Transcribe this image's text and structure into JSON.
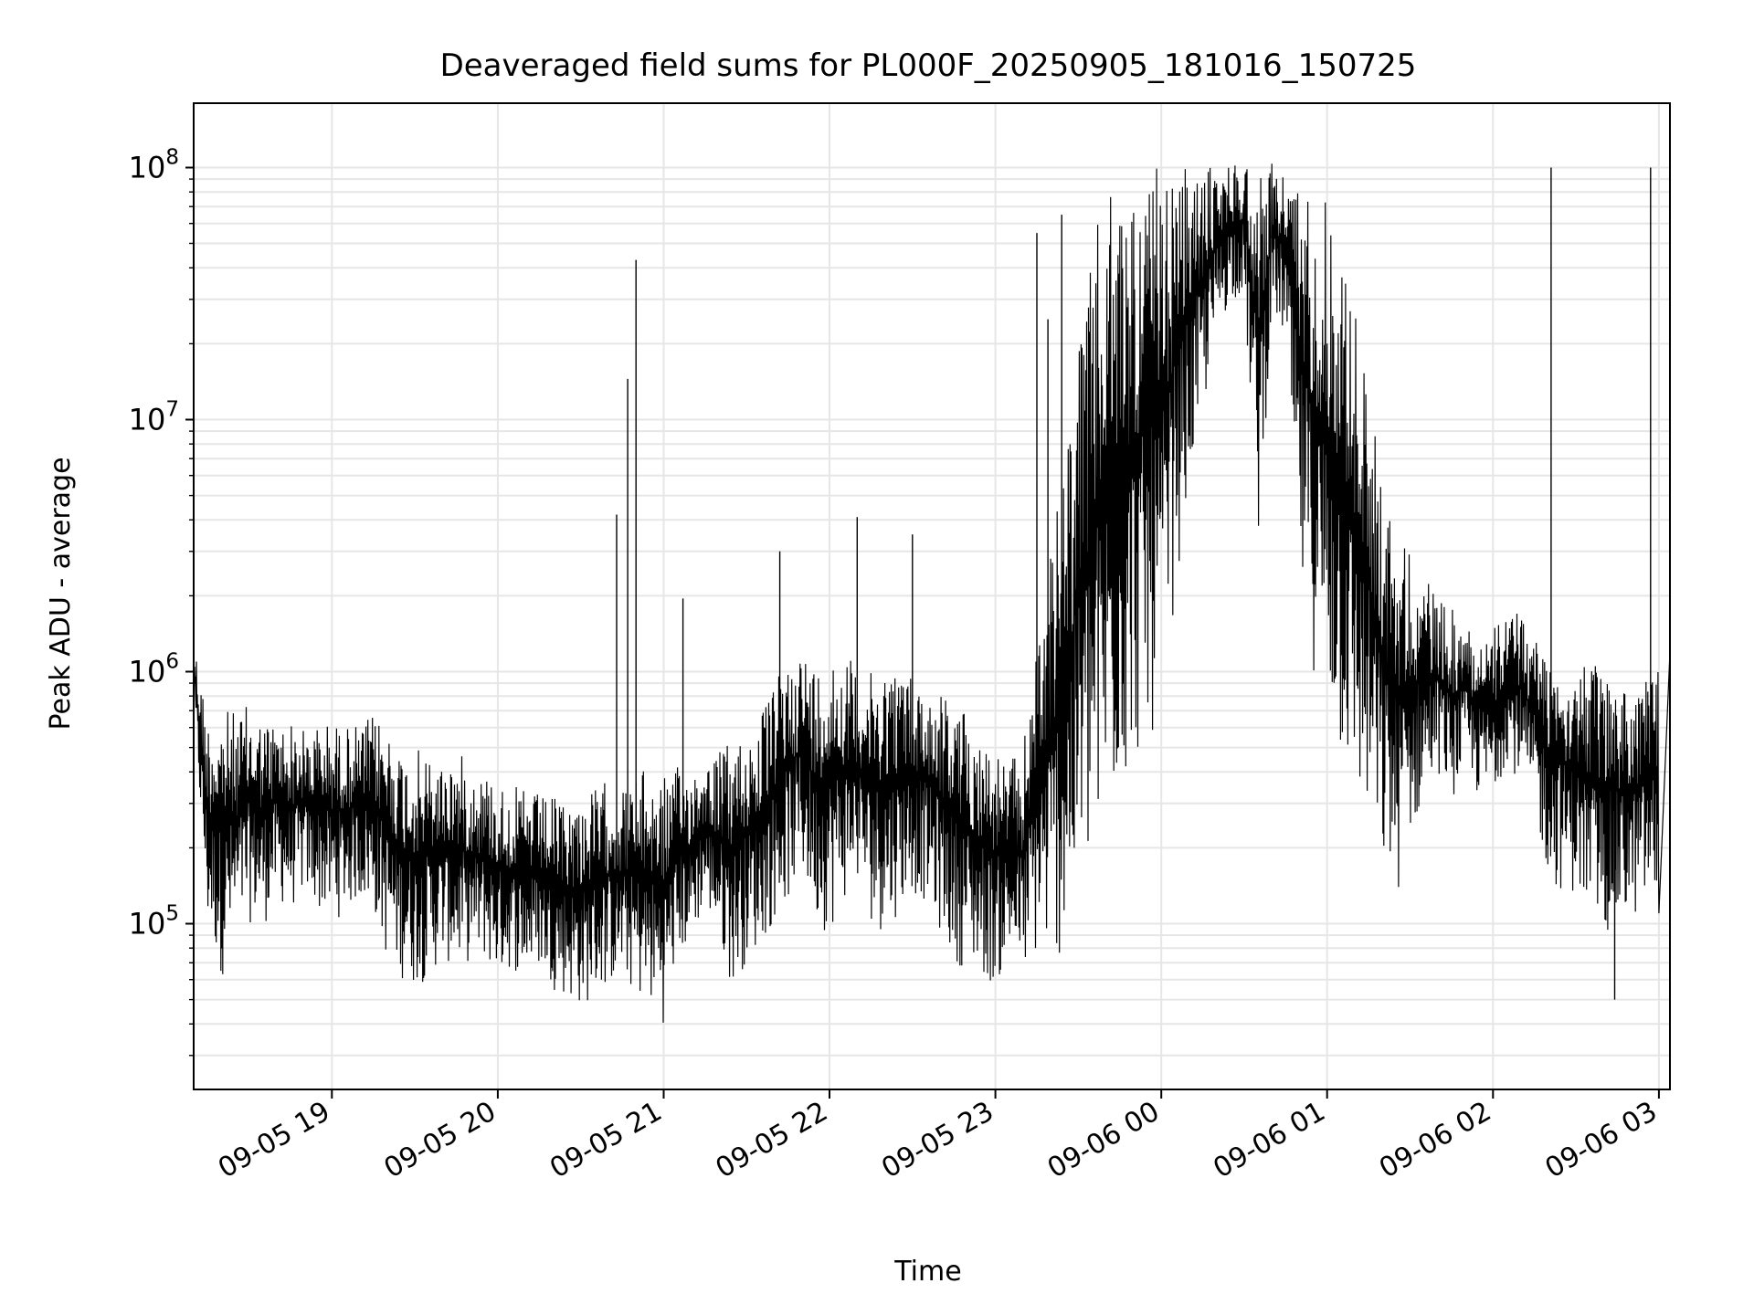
{
  "chart_data": {
    "type": "line",
    "title": "Deaveraged field sums for PL000F_20250905_181016_150725",
    "xlabel": "Time",
    "ylabel": "Peak ADU - average",
    "yscale": "log",
    "ylim": [
      22000,
      180000000
    ],
    "xlim": [
      "2025-09-05 18:10",
      "2025-09-06 03:04"
    ],
    "grid": true,
    "x_ticks": [
      {
        "t": "2025-09-05 19:00",
        "label": "09-05 19"
      },
      {
        "t": "2025-09-05 20:00",
        "label": "09-05 20"
      },
      {
        "t": "2025-09-05 21:00",
        "label": "09-05 21"
      },
      {
        "t": "2025-09-05 22:00",
        "label": "09-05 22"
      },
      {
        "t": "2025-09-05 23:00",
        "label": "09-05 23"
      },
      {
        "t": "2025-09-06 00:00",
        "label": "09-06 00"
      },
      {
        "t": "2025-09-06 01:00",
        "label": "09-06 01"
      },
      {
        "t": "2025-09-06 02:00",
        "label": "09-06 02"
      },
      {
        "t": "2025-09-06 03:00",
        "label": "09-06 03"
      }
    ],
    "y_ticks": [
      {
        "value": 100000,
        "base": "10",
        "exp": "5"
      },
      {
        "value": 1000000,
        "base": "10",
        "exp": "6"
      },
      {
        "value": 10000000,
        "base": "10",
        "exp": "7"
      },
      {
        "value": 100000000,
        "base": "10",
        "exp": "8"
      }
    ],
    "series": [
      {
        "color": "#000000",
        "x": [
          "2025-09-05 18:10",
          "2025-09-05 18:15",
          "2025-09-05 18:20",
          "2025-09-05 18:25",
          "2025-09-05 18:30",
          "2025-09-05 18:35",
          "2025-09-05 18:40",
          "2025-09-05 18:45",
          "2025-09-05 18:50",
          "2025-09-05 18:55",
          "2025-09-05 19:00",
          "2025-09-05 19:05",
          "2025-09-05 19:10",
          "2025-09-05 19:15",
          "2025-09-05 19:20",
          "2025-09-05 19:25",
          "2025-09-05 19:30",
          "2025-09-05 19:35",
          "2025-09-05 19:40",
          "2025-09-05 19:45",
          "2025-09-05 19:50",
          "2025-09-05 19:55",
          "2025-09-05 20:00",
          "2025-09-05 20:05",
          "2025-09-05 20:10",
          "2025-09-05 20:15",
          "2025-09-05 20:20",
          "2025-09-05 20:25",
          "2025-09-05 20:30",
          "2025-09-05 20:35",
          "2025-09-05 20:40",
          "2025-09-05 20:45",
          "2025-09-05 20:50",
          "2025-09-05 20:55",
          "2025-09-05 21:00",
          "2025-09-05 21:05",
          "2025-09-05 21:10",
          "2025-09-05 21:15",
          "2025-09-05 21:20",
          "2025-09-05 21:25",
          "2025-09-05 21:30",
          "2025-09-05 21:35",
          "2025-09-05 21:40",
          "2025-09-05 21:45",
          "2025-09-05 21:50",
          "2025-09-05 21:55",
          "2025-09-05 22:00",
          "2025-09-05 22:05",
          "2025-09-05 22:10",
          "2025-09-05 22:15",
          "2025-09-05 22:20",
          "2025-09-05 22:25",
          "2025-09-05 22:30",
          "2025-09-05 22:35",
          "2025-09-05 22:40",
          "2025-09-05 22:45",
          "2025-09-05 22:50",
          "2025-09-05 22:55",
          "2025-09-05 23:00",
          "2025-09-05 23:05",
          "2025-09-05 23:10",
          "2025-09-05 23:15",
          "2025-09-05 23:20",
          "2025-09-05 23:25",
          "2025-09-05 23:30",
          "2025-09-05 23:35",
          "2025-09-05 23:40",
          "2025-09-05 23:45",
          "2025-09-05 23:50",
          "2025-09-05 23:55",
          "2025-09-06 00:00",
          "2025-09-06 00:05",
          "2025-09-06 00:10",
          "2025-09-06 00:15",
          "2025-09-06 00:20",
          "2025-09-06 00:25",
          "2025-09-06 00:30",
          "2025-09-06 00:35",
          "2025-09-06 00:40",
          "2025-09-06 00:45",
          "2025-09-06 00:50",
          "2025-09-06 00:55",
          "2025-09-06 01:00",
          "2025-09-06 01:05",
          "2025-09-06 01:10",
          "2025-09-06 01:15",
          "2025-09-06 01:20",
          "2025-09-06 01:25",
          "2025-09-06 01:30",
          "2025-09-06 01:35",
          "2025-09-06 01:40",
          "2025-09-06 01:45",
          "2025-09-06 01:50",
          "2025-09-06 01:55",
          "2025-09-06 02:00",
          "2025-09-06 02:05",
          "2025-09-06 02:10",
          "2025-09-06 02:15",
          "2025-09-06 02:20",
          "2025-09-06 02:25",
          "2025-09-06 02:30",
          "2025-09-06 02:35",
          "2025-09-06 02:40",
          "2025-09-06 02:45",
          "2025-09-06 02:50",
          "2025-09-06 02:55",
          "2025-09-06 03:00"
        ],
        "lo": [
          700000,
          90000,
          60000,
          80000,
          100000,
          95000,
          120000,
          110000,
          130000,
          110000,
          100000,
          110000,
          120000,
          110000,
          70000,
          60000,
          55000,
          60000,
          70000,
          65000,
          70000,
          70000,
          60000,
          65000,
          60000,
          65000,
          55000,
          50000,
          45000,
          50000,
          55000,
          60000,
          50000,
          45000,
          40000,
          70000,
          80000,
          120000,
          80000,
          55000,
          70000,
          80000,
          100000,
          120000,
          150000,
          100000,
          90000,
          120000,
          140000,
          100000,
          90000,
          110000,
          130000,
          120000,
          90000,
          70000,
          65000,
          60000,
          55000,
          70000,
          60000,
          70000,
          70000,
          70000,
          120000,
          140000,
          200000,
          300000,
          400000,
          500000,
          600000,
          2000000,
          5000000,
          10000000,
          20000000,
          30000000,
          30000000,
          3000000,
          25000000,
          20000000,
          2000000,
          1000000,
          700000,
          400000,
          300000,
          220000,
          150000,
          120000,
          200000,
          300000,
          400000,
          300000,
          400000,
          300000,
          300000,
          450000,
          350000,
          250000,
          150000,
          130000,
          130000,
          100000,
          90000,
          90000,
          100000,
          110000,
          110000
        ],
        "hi": [
          1400000,
          700000,
          750000,
          700000,
          750000,
          680000,
          660000,
          650000,
          600000,
          640000,
          650000,
          620000,
          630000,
          680000,
          660000,
          520000,
          500000,
          480000,
          460000,
          500000,
          430000,
          420000,
          380000,
          350000,
          350000,
          330000,
          320000,
          320000,
          340000,
          350000,
          380000,
          350000,
          400000,
          420000,
          400000,
          420000,
          440000,
          460000,
          500000,
          550000,
          600000,
          700000,
          900000,
          1200000,
          1300000,
          1100000,
          1300000,
          1200000,
          1100000,
          1000000,
          1200000,
          1100000,
          1000000,
          900000,
          900000,
          800000,
          700000,
          600000,
          500000,
          450000,
          500000,
          1500000,
          3000000,
          8000000,
          20000000,
          50000000,
          80000000,
          90000000,
          95000000,
          98000000,
          100000000,
          100000000,
          100000000,
          100000000,
          105000000,
          108000000,
          110000000,
          110000000,
          105000000,
          100000000,
          95000000,
          90000000,
          80000000,
          60000000,
          30000000,
          15000000,
          6000000,
          4000000,
          3000000,
          2500000,
          2000000,
          1800000,
          1600000,
          1500000,
          1500000,
          1700000,
          1800000,
          1500000,
          1300000,
          1200000,
          1100000,
          1100000,
          1000000,
          1000000,
          900000,
          1000000,
          1200000
        ],
        "spikes": [
          {
            "t": "2025-09-05 20:43",
            "value": 4200000
          },
          {
            "t": "2025-09-05 20:47",
            "value": 14500000
          },
          {
            "t": "2025-09-05 20:50",
            "value": 43000000
          },
          {
            "t": "2025-09-05 21:07",
            "value": 1950000
          },
          {
            "t": "2025-09-05 21:42",
            "value": 3000000
          },
          {
            "t": "2025-09-05 22:10",
            "value": 4100000
          },
          {
            "t": "2025-09-05 22:30",
            "value": 3500000
          },
          {
            "t": "2025-09-05 23:15",
            "value": 55000000
          },
          {
            "t": "2025-09-05 23:19",
            "value": 25000000
          },
          {
            "t": "2025-09-05 23:24",
            "value": 65000000
          },
          {
            "t": "2025-09-06 02:21",
            "value": 100000000
          },
          {
            "t": "2025-09-06 02:57",
            "value": 100000000
          },
          {
            "t": "2025-09-06 02:44",
            "value": 50000
          }
        ]
      }
    ]
  }
}
